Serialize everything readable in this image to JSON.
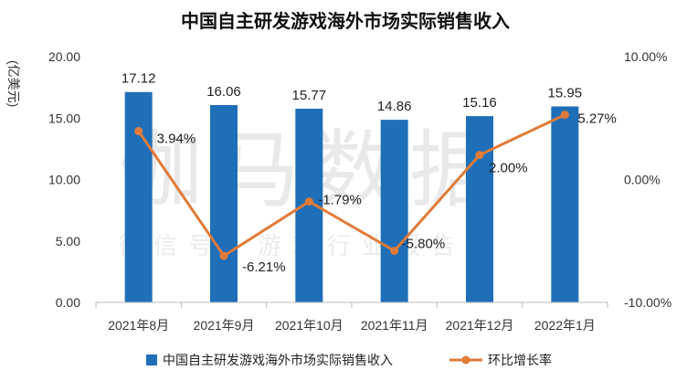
{
  "chart_data": {
    "type": "bar",
    "title": "中国自主研发游戏海外市场实际销售收入",
    "ylabel": "(亿美元)",
    "categories": [
      "2021年8月",
      "2021年9月",
      "2021年10月",
      "2021年11月",
      "2021年12月",
      "2022年1月"
    ],
    "ylim": [
      0,
      20
    ],
    "y_ticks": [
      "0.00",
      "5.00",
      "10.00",
      "15.00",
      "20.00"
    ],
    "y2lim": [
      -10,
      10
    ],
    "y2_ticks": [
      "-10.00%",
      "0.00%",
      "10.00%"
    ],
    "series": [
      {
        "name": "中国自主研发游戏海外市场实际销售收入",
        "type": "bar",
        "axis": "left",
        "color": "#1f6fb8",
        "values": [
          17.12,
          16.06,
          15.77,
          14.86,
          15.16,
          15.95
        ],
        "labels": [
          "17.12",
          "16.06",
          "15.77",
          "14.86",
          "15.16",
          "15.95"
        ]
      },
      {
        "name": "环比增长率",
        "type": "line",
        "axis": "right",
        "color": "#e07b39",
        "values": [
          3.94,
          -6.21,
          -1.79,
          -5.8,
          2.0,
          5.27
        ],
        "labels": [
          "3.94%",
          "-6.21%",
          "-1.79%",
          "-5.80%",
          "2.00%",
          "5.27%"
        ]
      }
    ],
    "legend": "bottom",
    "grid": false
  },
  "watermark": {
    "main": "伽马数据",
    "sub": "微信号：游戏行业报告"
  }
}
